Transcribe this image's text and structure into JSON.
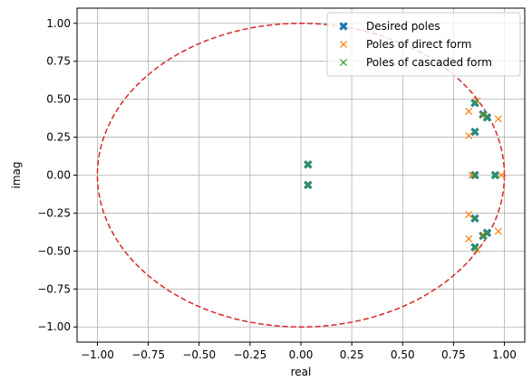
{
  "chart_data": {
    "type": "scatter",
    "title": "",
    "xlabel": "real",
    "ylabel": "imag",
    "xlim": [
      -1.1,
      1.1
    ],
    "ylim": [
      -1.1,
      1.1
    ],
    "xticks": [
      -1.0,
      -0.75,
      -0.5,
      -0.25,
      0.0,
      0.25,
      0.5,
      0.75,
      1.0
    ],
    "xtick_labels": [
      "−1.00",
      "−0.75",
      "−0.50",
      "−0.25",
      "0.00",
      "0.25",
      "0.50",
      "0.75",
      "1.00"
    ],
    "yticks": [
      -1.0,
      -0.75,
      -0.5,
      -0.25,
      0.0,
      0.25,
      0.5,
      0.75,
      1.0
    ],
    "ytick_labels": [
      "−1.00",
      "−0.75",
      "−0.50",
      "−0.25",
      "0.00",
      "0.25",
      "0.50",
      "0.75",
      "1.00"
    ],
    "grid": true,
    "legend_position": "top-right",
    "unit_circle": {
      "radius": 1.0,
      "style": "dashed",
      "color": "#d62728"
    },
    "series": [
      {
        "name": "Desired poles",
        "marker": "bold-x",
        "color": "#1f77b4",
        "points": [
          [
            0.035,
            0.07
          ],
          [
            0.035,
            -0.065
          ],
          [
            0.855,
            0.475
          ],
          [
            0.855,
            -0.475
          ],
          [
            0.895,
            0.4
          ],
          [
            0.895,
            -0.4
          ],
          [
            0.915,
            0.38
          ],
          [
            0.915,
            -0.38
          ],
          [
            0.855,
            0.285
          ],
          [
            0.855,
            -0.285
          ],
          [
            0.855,
            0.0
          ],
          [
            0.955,
            0.0
          ]
        ]
      },
      {
        "name": "Poles of direct form",
        "marker": "x",
        "color": "#ff7f0e",
        "points": [
          [
            0.035,
            0.07
          ],
          [
            0.035,
            -0.065
          ],
          [
            0.865,
            0.49
          ],
          [
            0.865,
            -0.49
          ],
          [
            0.825,
            0.42
          ],
          [
            0.825,
            -0.42
          ],
          [
            0.97,
            0.37
          ],
          [
            0.97,
            -0.37
          ],
          [
            0.825,
            0.26
          ],
          [
            0.825,
            -0.26
          ],
          [
            0.84,
            0.0
          ],
          [
            0.985,
            0.0
          ],
          [
            0.895,
            0.395
          ],
          [
            0.895,
            -0.395
          ]
        ]
      },
      {
        "name": "Poles of cascaded form",
        "marker": "x",
        "color": "#2ca02c",
        "points": [
          [
            0.035,
            0.07
          ],
          [
            0.035,
            -0.065
          ],
          [
            0.855,
            0.475
          ],
          [
            0.855,
            -0.475
          ],
          [
            0.895,
            0.4
          ],
          [
            0.895,
            -0.4
          ],
          [
            0.915,
            0.38
          ],
          [
            0.915,
            -0.38
          ],
          [
            0.855,
            0.285
          ],
          [
            0.855,
            -0.285
          ],
          [
            0.855,
            0.0
          ],
          [
            0.955,
            0.0
          ]
        ]
      }
    ]
  }
}
